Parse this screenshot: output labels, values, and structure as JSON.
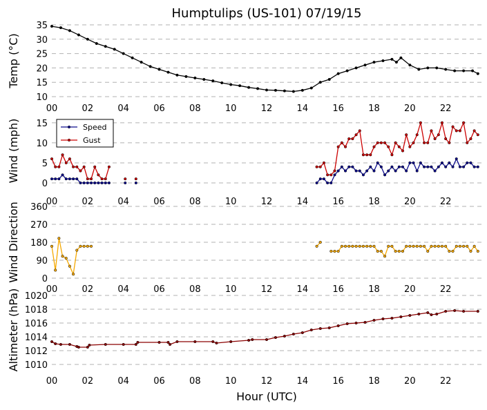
{
  "title": "Humptulips (US-101) 07/19/15",
  "xlabel": "Hour (UTC)",
  "x_tick_labels": [
    "00",
    "02",
    "04",
    "06",
    "08",
    "10",
    "12",
    "14",
    "16",
    "18",
    "20",
    "22"
  ],
  "chart_data": [
    {
      "type": "line",
      "ylabel": "Temp (°C)",
      "xlim": [
        0,
        24
      ],
      "ylim": [
        10,
        35
      ],
      "yticks": [
        10,
        15,
        20,
        25,
        30,
        35
      ],
      "grid": "horizontal dashed",
      "series": [
        {
          "color": "#000000",
          "x": [
            0,
            0.5,
            1,
            1.5,
            2,
            2.5,
            3,
            3.5,
            4,
            4.5,
            5,
            5.5,
            6,
            6.5,
            7,
            7.5,
            8,
            8.5,
            9,
            9.5,
            10,
            10.5,
            11,
            11.5,
            12,
            12.5,
            13,
            13.5,
            14,
            14.5,
            15,
            15.5,
            16,
            16.5,
            17,
            17.5,
            18,
            18.5,
            19,
            19.25,
            19.5,
            20,
            20.5,
            21,
            21.5,
            22,
            22.5,
            23,
            23.5,
            23.8
          ],
          "y": [
            34.5,
            34,
            33,
            31.5,
            30,
            28.5,
            27.5,
            26.5,
            25,
            23.5,
            22,
            20.5,
            19.5,
            18.5,
            17.5,
            17,
            16.5,
            16,
            15.5,
            14.8,
            14.2,
            13.8,
            13.2,
            12.8,
            12.3,
            12.2,
            12,
            11.8,
            12.2,
            13,
            15,
            16,
            18,
            19,
            20,
            21,
            22,
            22.5,
            23,
            22,
            23.5,
            21,
            19.5,
            20,
            20,
            19.5,
            19,
            19,
            19,
            18
          ]
        }
      ]
    },
    {
      "type": "line",
      "ylabel": "Wind (mph)",
      "xlim": [
        0,
        24
      ],
      "ylim": [
        0,
        16
      ],
      "yticks": [
        0,
        5,
        10,
        15
      ],
      "grid": "horizontal dashed",
      "legend": "top-left",
      "series": [
        {
          "name": "Speed",
          "color": "#0a0a8c",
          "segments": [
            {
              "x": [
                0,
                0.2,
                0.4,
                0.6,
                0.8,
                1,
                1.2,
                1.4,
                1.6,
                1.8,
                2,
                2.2,
                2.4,
                2.6,
                2.8,
                3,
                3.2
              ],
              "y": [
                1,
                1,
                1,
                2,
                1,
                1,
                1,
                1,
                0,
                0,
                0,
                0,
                0,
                0,
                0,
                0,
                0
              ]
            },
            {
              "x": [
                4.1
              ],
              "y": [
                0
              ]
            },
            {
              "x": [
                4.7
              ],
              "y": [
                0
              ]
            },
            {
              "x": [
                14.8,
                15,
                15.2,
                15.4,
                15.6,
                15.8,
                16,
                16.2,
                16.4,
                16.6,
                16.8,
                17,
                17.2,
                17.4,
                17.6,
                17.8,
                18,
                18.2,
                18.4,
                18.6,
                18.8,
                19,
                19.2,
                19.4,
                19.6,
                19.8,
                20,
                20.2,
                20.4,
                20.6,
                20.8,
                21,
                21.2,
                21.4,
                21.6,
                21.8,
                22,
                22.2,
                22.4,
                22.6,
                22.8,
                23,
                23.2,
                23.4,
                23.6,
                23.8
              ],
              "y": [
                0,
                1,
                1,
                0,
                0,
                2,
                3,
                4,
                3,
                4,
                4,
                3,
                3,
                2,
                3,
                4,
                3,
                5,
                4,
                2,
                3,
                4,
                3,
                4,
                4,
                3,
                5,
                5,
                3,
                5,
                4,
                4,
                4,
                3,
                4,
                5,
                4,
                5,
                4,
                6,
                4,
                4,
                5,
                5,
                4,
                4
              ]
            }
          ]
        },
        {
          "name": "Gust",
          "color": "#cc0000",
          "segments": [
            {
              "x": [
                0,
                0.2,
                0.4,
                0.6,
                0.8,
                1,
                1.2,
                1.4,
                1.6,
                1.8,
                2,
                2.2,
                2.4,
                2.6,
                2.8,
                3,
                3.2
              ],
              "y": [
                6,
                4,
                4,
                7,
                5,
                6,
                4,
                4,
                3,
                4,
                1,
                1,
                4,
                2,
                1,
                1,
                4
              ]
            },
            {
              "x": [
                4.1
              ],
              "y": [
                1
              ]
            },
            {
              "x": [
                4.7
              ],
              "y": [
                1
              ]
            },
            {
              "x": [
                14.8,
                15,
                15.2,
                15.4,
                15.6,
                15.8,
                16,
                16.2,
                16.4,
                16.6,
                16.8,
                17,
                17.2,
                17.4,
                17.6,
                17.8,
                18,
                18.2,
                18.4,
                18.6,
                18.8,
                19,
                19.2,
                19.4,
                19.6,
                19.8,
                20,
                20.2,
                20.4,
                20.6,
                20.8,
                21,
                21.2,
                21.4,
                21.6,
                21.8,
                22,
                22.2,
                22.4,
                22.6,
                22.8,
                23,
                23.2,
                23.4,
                23.6,
                23.8
              ],
              "y": [
                4,
                4,
                5,
                2,
                2,
                3,
                9,
                10,
                9,
                11,
                11,
                12,
                13,
                7,
                7,
                7,
                9,
                10,
                10,
                10,
                9,
                7,
                10,
                9,
                8,
                12,
                9,
                10,
                12,
                15,
                10,
                10,
                13,
                11,
                12,
                15,
                11,
                10,
                14,
                13,
                13,
                15,
                10,
                11,
                13,
                12
              ]
            }
          ]
        }
      ]
    },
    {
      "type": "line",
      "ylabel": "Wind Direction",
      "xlim": [
        0,
        24
      ],
      "ylim": [
        0,
        360
      ],
      "yticks": [
        0,
        90,
        180,
        270,
        360
      ],
      "grid": "horizontal dashed",
      "series": [
        {
          "color": "#f5a800",
          "segments": [
            {
              "x": [
                0,
                0.2,
                0.4,
                0.6,
                0.8,
                1,
                1.2,
                1.4,
                1.6,
                1.8,
                2,
                2.2
              ],
              "y": [
                160,
                40,
                200,
                110,
                100,
                60,
                20,
                140,
                160,
                160,
                160,
                160
              ]
            },
            {
              "x": [
                14.8,
                15
              ],
              "y": [
                160,
                180
              ]
            },
            {
              "x": [
                15.6,
                15.8,
                16,
                16.2,
                16.4,
                16.6,
                16.8,
                17,
                17.2,
                17.4,
                17.6,
                17.8,
                18,
                18.2,
                18.4,
                18.6,
                18.8,
                19,
                19.2,
                19.4,
                19.6,
                19.8,
                20,
                20.2,
                20.4,
                20.6,
                20.8,
                21,
                21.2,
                21.4,
                21.6,
                21.8,
                22,
                22.2,
                22.4,
                22.6,
                22.8,
                23,
                23.2,
                23.4,
                23.6,
                23.8
              ],
              "y": [
                135,
                135,
                135,
                160,
                160,
                160,
                160,
                160,
                160,
                160,
                160,
                160,
                160,
                135,
                135,
                110,
                160,
                160,
                135,
                135,
                135,
                160,
                160,
                160,
                160,
                160,
                160,
                135,
                160,
                160,
                160,
                160,
                160,
                135,
                135,
                160,
                160,
                160,
                160,
                135,
                160,
                135
              ]
            }
          ]
        }
      ]
    },
    {
      "type": "line",
      "ylabel": "Altimeter (hPa)",
      "xlim": [
        0,
        24
      ],
      "ylim": [
        1010,
        1020
      ],
      "yticks": [
        1010,
        1012,
        1014,
        1016,
        1018,
        1020
      ],
      "grid": "horizontal dashed",
      "series": [
        {
          "color": "#8b0000",
          "x": [
            0,
            0.2,
            0.5,
            1,
            1.4,
            1.5,
            2,
            2.1,
            3,
            4,
            4.7,
            4.8,
            6,
            6.5,
            6.6,
            7,
            8,
            9,
            9.2,
            10,
            11,
            11.2,
            12,
            12.5,
            13,
            13.5,
            14,
            14.5,
            15,
            15.5,
            16,
            16.5,
            17,
            17.5,
            18,
            18.5,
            19,
            19.5,
            20,
            20.5,
            21,
            21.2,
            21.5,
            22,
            22.5,
            23,
            23.8
          ],
          "y": [
            1013.3,
            1013,
            1012.9,
            1012.9,
            1012.6,
            1012.5,
            1012.5,
            1012.8,
            1012.9,
            1012.9,
            1012.9,
            1013.2,
            1013.2,
            1013.2,
            1012.9,
            1013.3,
            1013.3,
            1013.3,
            1013.1,
            1013.3,
            1013.5,
            1013.6,
            1013.6,
            1013.9,
            1014.1,
            1014.4,
            1014.6,
            1015,
            1015.2,
            1015.3,
            1015.6,
            1015.9,
            1016,
            1016.1,
            1016.4,
            1016.6,
            1016.7,
            1016.9,
            1017.1,
            1017.3,
            1017.5,
            1017.2,
            1017.3,
            1017.7,
            1017.8,
            1017.7,
            1017.7
          ]
        }
      ]
    }
  ]
}
